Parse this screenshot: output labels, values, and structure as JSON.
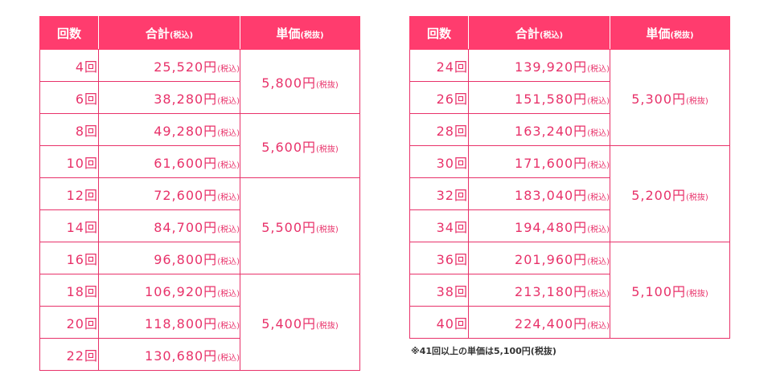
{
  "headers": {
    "count": "回数",
    "total": "合計",
    "total_suffix": "(税込)",
    "unit": "単価",
    "unit_suffix": "(税抜)"
  },
  "tax_in": "(税込)",
  "tax_out": "(税抜)",
  "left_rows": [
    {
      "count": "4回",
      "total": "25,520円"
    },
    {
      "count": "6回",
      "total": "38,280円"
    },
    {
      "count": "8回",
      "total": "49,280円"
    },
    {
      "count": "10回",
      "total": "61,600円"
    },
    {
      "count": "12回",
      "total": "72,600円"
    },
    {
      "count": "14回",
      "total": "84,700円"
    },
    {
      "count": "16回",
      "total": "96,800円"
    },
    {
      "count": "18回",
      "total": "106,920円"
    },
    {
      "count": "20回",
      "total": "118,800円"
    },
    {
      "count": "22回",
      "total": "130,680円"
    }
  ],
  "left_units": [
    "5,800円",
    "5,600円",
    "5,500円",
    "5,400円"
  ],
  "right_rows": [
    {
      "count": "24回",
      "total": "139,920円"
    },
    {
      "count": "26回",
      "total": "151,580円"
    },
    {
      "count": "28回",
      "total": "163,240円"
    },
    {
      "count": "30回",
      "total": "171,600円"
    },
    {
      "count": "32回",
      "total": "183,040円"
    },
    {
      "count": "34回",
      "total": "194,480円"
    },
    {
      "count": "36回",
      "total": "201,960円"
    },
    {
      "count": "38回",
      "total": "213,180円"
    },
    {
      "count": "40回",
      "total": "224,400円"
    }
  ],
  "right_units": [
    "5,300円",
    "5,200円",
    "5,100円"
  ],
  "note": "※41回以上の単価は5,100円(税抜)"
}
